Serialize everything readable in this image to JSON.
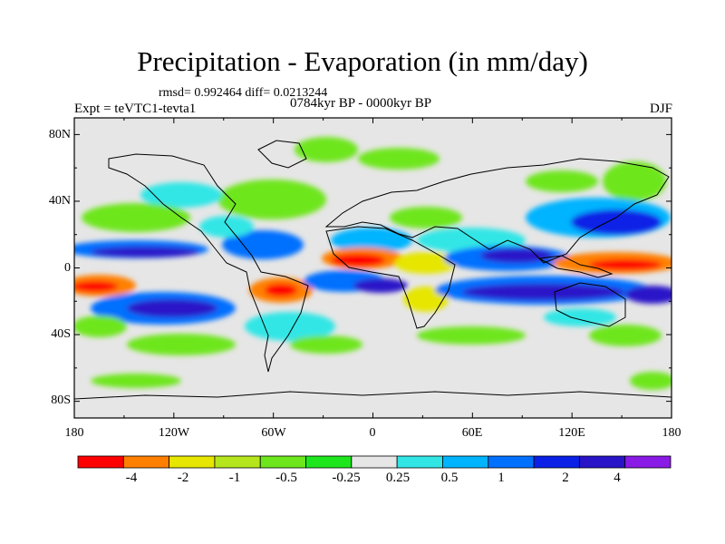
{
  "title": "Precipitation - Evaporation (in mm/day)",
  "stats_text": "rmsd= 0.992464 diff= 0.0213244",
  "left_label": "Expt = teVTC1-tevta1",
  "center_label": "0784kyr BP - 0000kyr BP",
  "right_label": "DJF",
  "lat_labels": [
    "80N",
    "40N",
    "0",
    "40S",
    "80S"
  ],
  "lon_labels": [
    "180",
    "120W",
    "60W",
    "0",
    "60E",
    "120E",
    "180"
  ],
  "colorbar": {
    "colors": [
      "#ff0000",
      "#ff8000",
      "#e6e600",
      "#b5e61d",
      "#6ee61d",
      "#1ee61d",
      "#e6e6e6",
      "#33e6e6",
      "#00b4ff",
      "#0070ff",
      "#0a20e6",
      "#2a14c8",
      "#8a1ae6"
    ],
    "labels": [
      "-4",
      "-2",
      "-1",
      "-0.5",
      "-0.25",
      "0.25",
      "0.5",
      "1",
      "2",
      "4"
    ]
  },
  "map_background": "#e6e6e6",
  "coast_color": "#000000"
}
